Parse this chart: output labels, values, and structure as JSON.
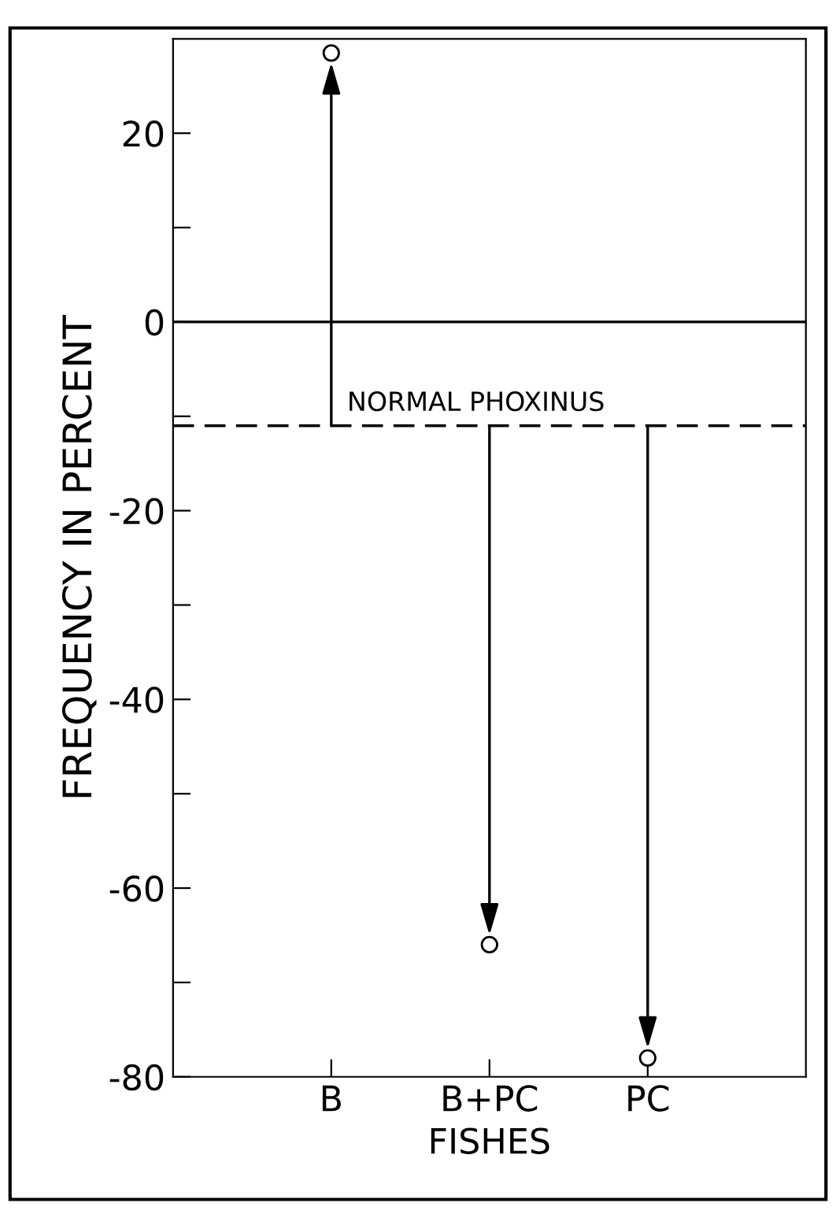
{
  "chart_data": {
    "type": "lollipop",
    "xlabel": "FISHES",
    "ylabel": "FREQUENCY IN PERCENT",
    "categories": [
      "B",
      "B+PC",
      "PC"
    ],
    "values": [
      28.5,
      -66,
      -78
    ],
    "color": "#000000",
    "marker": "circle",
    "ylim": [
      -80,
      30
    ],
    "yticks": [
      {
        "value": 20,
        "label": "20"
      },
      {
        "value": 10,
        "label": null
      },
      {
        "value": 0,
        "label": "0"
      },
      {
        "value": -10,
        "label": null
      },
      {
        "value": -20,
        "label": "-20"
      },
      {
        "value": -30,
        "label": null
      },
      {
        "value": -40,
        "label": "-40"
      },
      {
        "value": -50,
        "label": null
      },
      {
        "value": -60,
        "label": "-60"
      },
      {
        "value": -70,
        "label": null
      },
      {
        "value": -80,
        "label": "-80"
      }
    ],
    "ref_lines": [
      {
        "axis": "y",
        "value": 0,
        "label": null,
        "line_style": "solid"
      },
      {
        "axis": "y",
        "value": -11,
        "label": "NORMAL PHOXINUS",
        "line_style": "dashed"
      }
    ],
    "grid": false,
    "legend": false
  }
}
